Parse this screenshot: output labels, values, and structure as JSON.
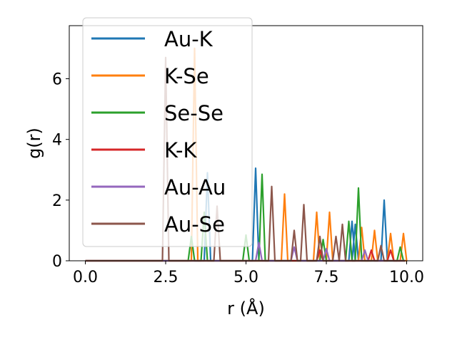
{
  "chart_data": {
    "type": "line",
    "title": "",
    "xlabel": "r (Å)",
    "ylabel": "g(r)",
    "xlim": [
      -0.5,
      10.5
    ],
    "ylim": [
      0,
      7.75
    ],
    "xticks": [
      0.0,
      2.5,
      5.0,
      7.5,
      10.0
    ],
    "xtick_labels": [
      "0.0",
      "2.5",
      "5.0",
      "7.5",
      "10.0"
    ],
    "yticks": [
      0,
      2,
      4,
      6
    ],
    "ytick_labels": [
      "0",
      "2",
      "4",
      "6"
    ],
    "grid": false,
    "legend_position": "upper-left",
    "series": [
      {
        "name": "Au-K",
        "color": "#1f77b4",
        "peaks": [
          [
            3.8,
            2.9
          ],
          [
            5.3,
            3.05
          ],
          [
            8.3,
            1.3
          ],
          [
            8.4,
            1.2
          ],
          [
            9.3,
            2.0
          ]
        ]
      },
      {
        "name": "K-Se",
        "color": "#ff7f0e",
        "peaks": [
          [
            3.4,
            7.0
          ],
          [
            6.2,
            2.2
          ],
          [
            7.2,
            1.6
          ],
          [
            7.6,
            1.6
          ],
          [
            8.6,
            1.1
          ],
          [
            9.0,
            1.0
          ],
          [
            9.5,
            0.9
          ],
          [
            9.9,
            0.9
          ]
        ]
      },
      {
        "name": "Se-Se",
        "color": "#2ca02c",
        "peaks": [
          [
            3.3,
            0.8
          ],
          [
            3.7,
            1.6
          ],
          [
            5.0,
            0.85
          ],
          [
            5.5,
            2.85
          ],
          [
            7.4,
            0.7
          ],
          [
            8.2,
            1.3
          ],
          [
            8.5,
            2.4
          ],
          [
            9.8,
            0.45
          ]
        ]
      },
      {
        "name": "K-K",
        "color": "#d62728",
        "peaks": [
          [
            7.3,
            0.35
          ],
          [
            8.9,
            0.35
          ],
          [
            9.5,
            0.35
          ]
        ]
      },
      {
        "name": "Au-Au",
        "color": "#9467bd",
        "peaks": [
          [
            5.4,
            0.6
          ],
          [
            6.5,
            0.45
          ],
          [
            7.5,
            0.4
          ],
          [
            8.7,
            0.35
          ]
        ]
      },
      {
        "name": "Au-Se",
        "color": "#8c564b",
        "peaks": [
          [
            2.5,
            6.7
          ],
          [
            4.1,
            1.8
          ],
          [
            5.8,
            2.45
          ],
          [
            6.5,
            1.0
          ],
          [
            6.8,
            1.85
          ],
          [
            7.3,
            0.8
          ],
          [
            7.8,
            0.8
          ],
          [
            8.0,
            1.2
          ],
          [
            9.2,
            0.5
          ]
        ]
      }
    ]
  }
}
